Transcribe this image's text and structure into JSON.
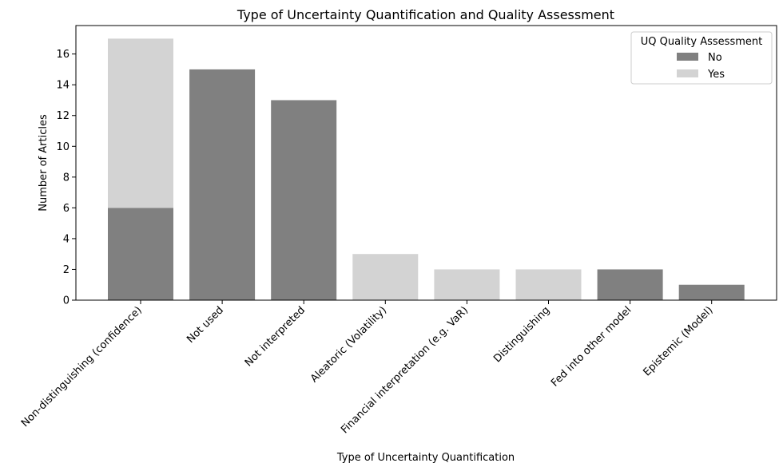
{
  "chart_data": {
    "type": "bar",
    "stacked": true,
    "title": "Type of Uncertainty Quantification and Quality Assessment",
    "xlabel": "Type of Uncertainty Quantification",
    "ylabel": "Number of Articles",
    "categories": [
      "Non-distinguishing (confidence)",
      "Not used",
      "Not interpreted",
      "Aleatoric (Volatility)",
      "Financial interpretation (e.g. VaR)",
      "Distinguishing",
      "Fed into other model",
      "Epistemic (Model)"
    ],
    "series": [
      {
        "name": "No",
        "color": "#808080",
        "values": [
          6,
          15,
          13,
          0,
          0,
          0,
          2,
          1
        ]
      },
      {
        "name": "Yes",
        "color": "#d3d3d3",
        "values": [
          11,
          0,
          0,
          3,
          2,
          2,
          0,
          0
        ]
      }
    ],
    "legend": {
      "title": "UQ Quality Assessment",
      "position": "top-right"
    },
    "ylim": [
      0,
      17.85
    ],
    "yticks": [
      0,
      2,
      4,
      6,
      8,
      10,
      12,
      14,
      16
    ],
    "grid": false
  }
}
